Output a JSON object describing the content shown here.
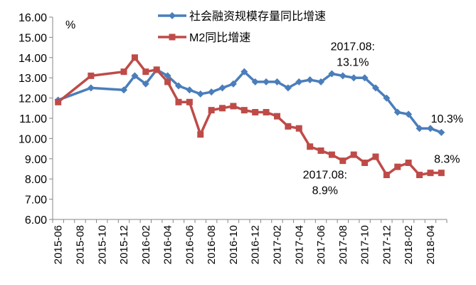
{
  "chart_data": {
    "type": "line",
    "title": "",
    "unit_label": "%",
    "xlabel": "",
    "ylabel": "",
    "ylim": [
      6,
      16
    ],
    "y_ticks": [
      "6.00",
      "7.00",
      "8.00",
      "9.00",
      "10.00",
      "11.00",
      "12.00",
      "13.00",
      "14.00",
      "15.00",
      "16.00"
    ],
    "x_tick_labels": [
      "2015-06",
      "2015-08",
      "2015-10",
      "2015-12",
      "2016-02",
      "2016-04",
      "2016-06",
      "2016-08",
      "2016-10",
      "2016-12",
      "2017-02",
      "2017-04",
      "2017-06",
      "2017-08",
      "2017-10",
      "2017-12",
      "2018-02",
      "2018-04"
    ],
    "x_start": "2015-06",
    "x_end": "2018-05",
    "grid": false,
    "legend_position": "top-right",
    "series": [
      {
        "name": "社会融资规模存量同比增速",
        "color": "#4a7ebb",
        "marker": "diamond",
        "points": [
          {
            "x": "2015-06",
            "y": 11.9
          },
          {
            "x": "2015-09",
            "y": 12.5
          },
          {
            "x": "2015-12",
            "y": 12.4
          },
          {
            "x": "2016-01",
            "y": 13.1
          },
          {
            "x": "2016-02",
            "y": 12.7
          },
          {
            "x": "2016-03",
            "y": 13.4
          },
          {
            "x": "2016-04",
            "y": 13.1
          },
          {
            "x": "2016-05",
            "y": 12.6
          },
          {
            "x": "2016-06",
            "y": 12.4
          },
          {
            "x": "2016-07",
            "y": 12.2
          },
          {
            "x": "2016-08",
            "y": 12.3
          },
          {
            "x": "2016-09",
            "y": 12.5
          },
          {
            "x": "2016-10",
            "y": 12.7
          },
          {
            "x": "2016-11",
            "y": 13.3
          },
          {
            "x": "2016-12",
            "y": 12.8
          },
          {
            "x": "2017-01",
            "y": 12.8
          },
          {
            "x": "2017-02",
            "y": 12.8
          },
          {
            "x": "2017-03",
            "y": 12.5
          },
          {
            "x": "2017-04",
            "y": 12.8
          },
          {
            "x": "2017-05",
            "y": 12.9
          },
          {
            "x": "2017-06",
            "y": 12.8
          },
          {
            "x": "2017-07",
            "y": 13.2
          },
          {
            "x": "2017-08",
            "y": 13.1
          },
          {
            "x": "2017-09",
            "y": 13.0
          },
          {
            "x": "2017-10",
            "y": 13.0
          },
          {
            "x": "2017-11",
            "y": 12.5
          },
          {
            "x": "2017-12",
            "y": 12.0
          },
          {
            "x": "2018-01",
            "y": 11.3
          },
          {
            "x": "2018-02",
            "y": 11.2
          },
          {
            "x": "2018-03",
            "y": 10.5
          },
          {
            "x": "2018-04",
            "y": 10.5
          },
          {
            "x": "2018-05",
            "y": 10.3
          }
        ]
      },
      {
        "name": "M2同比增速",
        "color": "#be4b48",
        "marker": "square",
        "points": [
          {
            "x": "2015-06",
            "y": 11.8
          },
          {
            "x": "2015-09",
            "y": 13.1
          },
          {
            "x": "2015-12",
            "y": 13.3
          },
          {
            "x": "2016-01",
            "y": 14.0
          },
          {
            "x": "2016-02",
            "y": 13.3
          },
          {
            "x": "2016-03",
            "y": 13.4
          },
          {
            "x": "2016-04",
            "y": 12.8
          },
          {
            "x": "2016-05",
            "y": 11.8
          },
          {
            "x": "2016-06",
            "y": 11.8
          },
          {
            "x": "2016-07",
            "y": 10.2
          },
          {
            "x": "2016-08",
            "y": 11.4
          },
          {
            "x": "2016-09",
            "y": 11.5
          },
          {
            "x": "2016-10",
            "y": 11.6
          },
          {
            "x": "2016-11",
            "y": 11.4
          },
          {
            "x": "2016-12",
            "y": 11.3
          },
          {
            "x": "2017-01",
            "y": 11.3
          },
          {
            "x": "2017-02",
            "y": 11.1
          },
          {
            "x": "2017-03",
            "y": 10.6
          },
          {
            "x": "2017-04",
            "y": 10.5
          },
          {
            "x": "2017-05",
            "y": 9.6
          },
          {
            "x": "2017-06",
            "y": 9.4
          },
          {
            "x": "2017-07",
            "y": 9.2
          },
          {
            "x": "2017-08",
            "y": 8.9
          },
          {
            "x": "2017-09",
            "y": 9.2
          },
          {
            "x": "2017-10",
            "y": 8.8
          },
          {
            "x": "2017-11",
            "y": 9.1
          },
          {
            "x": "2017-12",
            "y": 8.2
          },
          {
            "x": "2018-01",
            "y": 8.6
          },
          {
            "x": "2018-02",
            "y": 8.8
          },
          {
            "x": "2018-03",
            "y": 8.2
          },
          {
            "x": "2018-04",
            "y": 8.3
          },
          {
            "x": "2018-05",
            "y": 8.3
          }
        ]
      }
    ],
    "annotations": [
      {
        "series": 0,
        "x": "2017-08",
        "line1": "2017.08:",
        "line2": "13.1%",
        "anchor": "above"
      },
      {
        "series": 0,
        "x": "2018-05",
        "line1": "10.3%",
        "anchor": "above"
      },
      {
        "series": 1,
        "x": "2017-08",
        "line1": "2017.08:",
        "line2": "8.9%",
        "anchor": "below"
      },
      {
        "series": 1,
        "x": "2018-05",
        "line1": "8.3%",
        "anchor": "above"
      }
    ]
  }
}
